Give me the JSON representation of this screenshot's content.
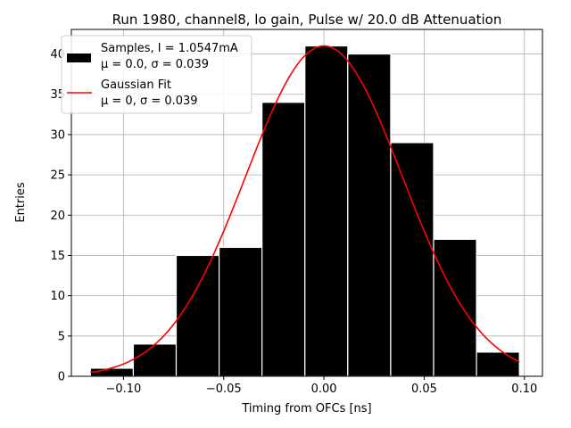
{
  "chart_data": {
    "type": "bar",
    "title": "Run 1980, channel8, lo gain, Pulse w/ 20.0 dB Attenuation",
    "xlabel": "Timing from OFCs [ns]",
    "ylabel": "Entries",
    "xlim": [
      -0.126,
      0.109
    ],
    "ylim": [
      0,
      43.05
    ],
    "grid": true,
    "x_ticks": [
      -0.1,
      -0.05,
      0.0,
      0.05,
      0.1
    ],
    "x_tick_labels": [
      "−0.10",
      "−0.05",
      "0.00",
      "0.05",
      "0.10"
    ],
    "y_ticks": [
      0,
      5,
      10,
      15,
      20,
      25,
      30,
      35,
      40
    ],
    "y_tick_labels": [
      "0",
      "5",
      "10",
      "15",
      "20",
      "25",
      "30",
      "35",
      "40"
    ],
    "histogram": {
      "name": "Samples",
      "bin_edges": [
        -0.1165,
        -0.0951,
        -0.0737,
        -0.0523,
        -0.0309,
        -0.0095,
        0.0119,
        0.0333,
        0.0547,
        0.0761,
        0.0975
      ],
      "counts": [
        1,
        4,
        15,
        16,
        34,
        41,
        40,
        29,
        17,
        3
      ],
      "color": "#000000",
      "edge_color": "#ffffff"
    },
    "fit": {
      "name": "Gaussian Fit",
      "type": "line",
      "mu": 0.0,
      "sigma": 0.039,
      "amplitude": 41.0,
      "x_range": [
        -0.1165,
        0.0975
      ],
      "color": "#ff0000"
    },
    "legend": {
      "placement": "top-left",
      "entries": [
        {
          "line1": "Samples, I = 1.0547mA",
          "line2": "μ = 0.0, σ = 0.039"
        },
        {
          "line1": "Gaussian Fit",
          "line2": "μ = 0, σ = 0.039"
        }
      ]
    }
  }
}
